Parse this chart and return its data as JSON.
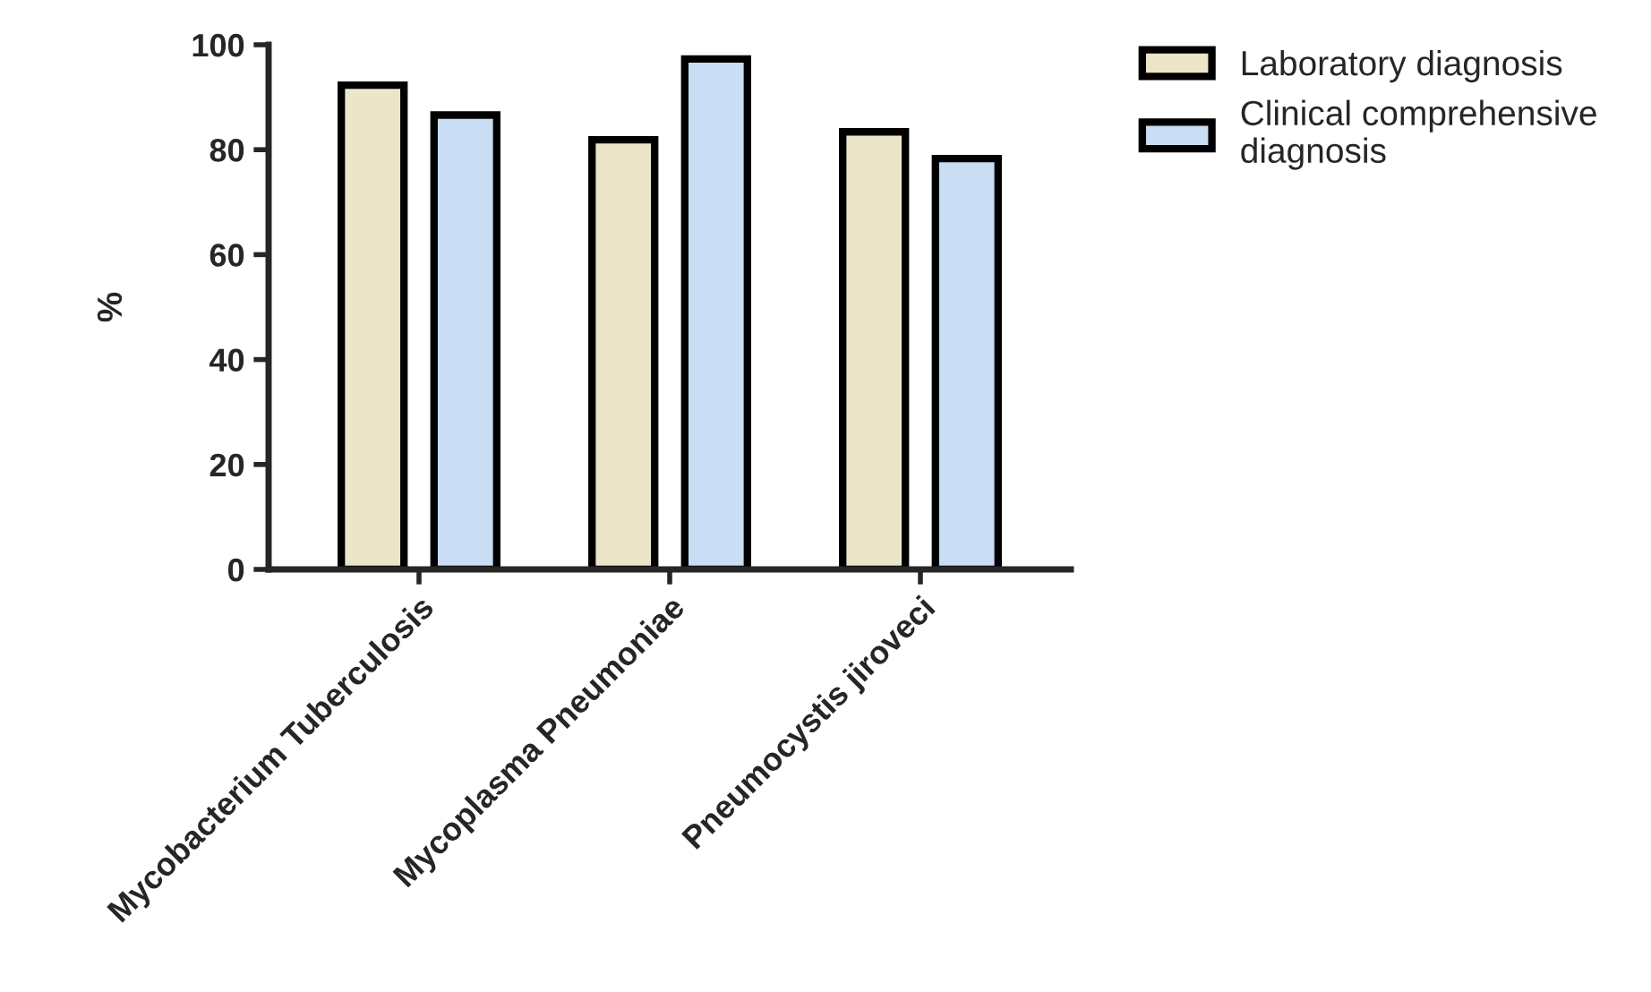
{
  "chart_data": {
    "type": "bar",
    "ylabel": "%",
    "categories": [
      "Mycobacterium Tuberculosis",
      "Mycoplasma Pneumoniae",
      "Pneumocystis jiroveci"
    ],
    "series": [
      {
        "name": "Laboratory diagnosis",
        "color": "#ece6c8",
        "values": [
          92.3,
          81.9,
          83.4
        ]
      },
      {
        "name": "Clinical comprehensive\ndiagnosis",
        "color": "#c9ddf5",
        "values": [
          86.6,
          97.3,
          78.3
        ]
      }
    ],
    "ylim": [
      0,
      100
    ],
    "yticks": [
      0,
      20,
      40,
      60,
      80,
      100
    ],
    "legend": "top right",
    "grid": false
  }
}
